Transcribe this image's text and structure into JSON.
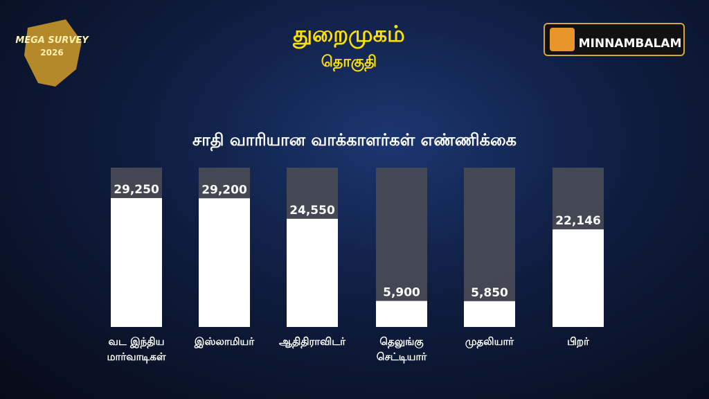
{
  "chart_data": {
    "type": "bar",
    "title": "துறைமுகம்",
    "subtitle": "தொகுதி",
    "heading": "சாதி வாரியான வாக்காளர்கள்  எண்ணிக்கை",
    "categories": [
      "வட இந்திய மார்வாடிகள்",
      "இஸ்லாமியர்",
      "ஆதிதிராவிடர்",
      "தெலுங்கு செட்டியார்",
      "முதலியார்",
      "பிறர்"
    ],
    "values": [
      29250,
      29200,
      24550,
      5900,
      5850,
      22146
    ],
    "value_labels": [
      "29,250",
      "29,200",
      "24,550",
      "5,900",
      "5,850",
      "22,146"
    ],
    "color": "#ffffff"
  },
  "logos": {
    "left": {
      "line1": "MEGA SURVEY",
      "line2": "2026"
    },
    "right": "MINNAMBALAM"
  }
}
